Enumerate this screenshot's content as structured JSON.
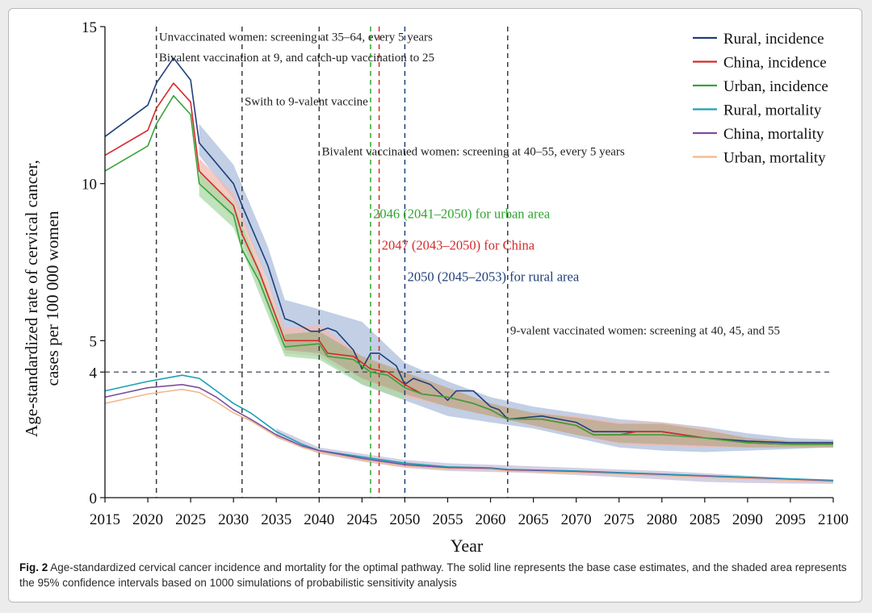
{
  "chart_data": {
    "type": "line",
    "title": "",
    "xlabel": "Year",
    "ylabel": "Age-standardized rate of cervical cancer,",
    "ylabel2": "cases per 100 000 women",
    "xlim": [
      2015,
      2100
    ],
    "ylim": [
      0,
      15
    ],
    "xticks": [
      "2015",
      "2020",
      "2025",
      "2030",
      "2035",
      "2040",
      "2045",
      "2050",
      "2055",
      "2060",
      "2065",
      "2070",
      "2075",
      "2080",
      "2085",
      "2090",
      "2095",
      "2100"
    ],
    "yticks": [
      "0",
      "4",
      "5",
      "10",
      "15"
    ],
    "threshold": 4,
    "legend_position": "top-right",
    "series": [
      {
        "name": "Rural, incidence",
        "color": "#1f3f7a",
        "x": [
          2015,
          2020,
          2021,
          2023,
          2025,
          2026,
          2030,
          2031,
          2034,
          2036,
          2037,
          2039,
          2040,
          2041,
          2042,
          2044,
          2045,
          2046,
          2047,
          2049,
          2050,
          2051,
          2053,
          2055,
          2056,
          2058,
          2060,
          2061,
          2062,
          2066,
          2070,
          2072,
          2075,
          2077,
          2080,
          2085,
          2090,
          2095,
          2100
        ],
        "y": [
          11.5,
          12.5,
          13.2,
          14.0,
          13.3,
          11.3,
          10.0,
          9.3,
          7.4,
          5.7,
          5.6,
          5.3,
          5.3,
          5.4,
          5.3,
          4.7,
          4.1,
          4.6,
          4.6,
          4.2,
          3.6,
          3.8,
          3.6,
          3.1,
          3.4,
          3.4,
          2.9,
          2.8,
          2.5,
          2.6,
          2.4,
          2.1,
          2.1,
          2.1,
          2.1,
          1.9,
          1.8,
          1.75,
          1.75
        ]
      },
      {
        "name": "China, incidence",
        "color": "#d42b2b",
        "x": [
          2015,
          2020,
          2021,
          2023,
          2025,
          2026,
          2030,
          2031,
          2033,
          2036,
          2040,
          2041,
          2044,
          2046,
          2048,
          2050,
          2052,
          2055,
          2058,
          2060,
          2062,
          2066,
          2070,
          2072,
          2075,
          2077,
          2080,
          2085,
          2090,
          2095,
          2100
        ],
        "y": [
          10.9,
          11.7,
          12.4,
          13.2,
          12.6,
          10.4,
          9.3,
          8.4,
          7.2,
          5.0,
          5.0,
          4.6,
          4.5,
          4.1,
          4.0,
          3.6,
          3.3,
          3.2,
          3.0,
          2.8,
          2.5,
          2.5,
          2.3,
          2.0,
          2.0,
          2.1,
          2.1,
          1.9,
          1.75,
          1.7,
          1.7
        ]
      },
      {
        "name": "Urban, incidence",
        "color": "#3aa33a",
        "x": [
          2015,
          2020,
          2021,
          2023,
          2025,
          2026,
          2030,
          2031,
          2033,
          2036,
          2040,
          2041,
          2044,
          2046,
          2048,
          2050,
          2052,
          2055,
          2058,
          2060,
          2062,
          2066,
          2070,
          2072,
          2075,
          2077,
          2080,
          2085,
          2090,
          2095,
          2100
        ],
        "y": [
          10.4,
          11.2,
          11.9,
          12.8,
          12.2,
          10.0,
          9.0,
          7.9,
          6.9,
          4.8,
          4.9,
          4.5,
          4.4,
          4.0,
          3.9,
          3.5,
          3.3,
          3.2,
          3.0,
          2.8,
          2.5,
          2.5,
          2.3,
          2.0,
          2.0,
          2.0,
          2.0,
          1.9,
          1.75,
          1.7,
          1.7
        ]
      },
      {
        "name": "Rural, mortality",
        "color": "#1aa0b8",
        "x": [
          2015,
          2020,
          2024,
          2026,
          2028,
          2030,
          2032,
          2035,
          2038,
          2040,
          2045,
          2050,
          2055,
          2060,
          2062,
          2070,
          2080,
          2090,
          2100
        ],
        "y": [
          3.4,
          3.7,
          3.9,
          3.8,
          3.4,
          3.0,
          2.7,
          2.1,
          1.7,
          1.5,
          1.3,
          1.1,
          0.98,
          0.95,
          0.9,
          0.85,
          0.75,
          0.65,
          0.55
        ]
      },
      {
        "name": "China, mortality",
        "color": "#7a4f9e",
        "x": [
          2015,
          2020,
          2024,
          2026,
          2028,
          2030,
          2032,
          2035,
          2038,
          2040,
          2045,
          2050,
          2055,
          2060,
          2062,
          2070,
          2080,
          2090,
          2100
        ],
        "y": [
          3.2,
          3.5,
          3.6,
          3.5,
          3.2,
          2.8,
          2.5,
          2.0,
          1.65,
          1.5,
          1.25,
          1.05,
          0.95,
          0.92,
          0.88,
          0.82,
          0.72,
          0.62,
          0.52
        ]
      },
      {
        "name": "Urban, mortality",
        "color": "#f0b88e",
        "x": [
          2015,
          2020,
          2024,
          2026,
          2028,
          2030,
          2032,
          2035,
          2038,
          2040,
          2045,
          2050,
          2055,
          2060,
          2062,
          2070,
          2080,
          2090,
          2100
        ],
        "y": [
          3.0,
          3.3,
          3.45,
          3.35,
          3.05,
          2.7,
          2.45,
          1.95,
          1.6,
          1.45,
          1.2,
          1.0,
          0.92,
          0.9,
          0.85,
          0.8,
          0.7,
          0.6,
          0.5
        ]
      }
    ],
    "bands": [
      {
        "series": "Rural, incidence",
        "color": "#aebfdc",
        "x": [
          2026,
          2030,
          2034,
          2036,
          2040,
          2045,
          2050,
          2055,
          2060,
          2065,
          2070,
          2075,
          2080,
          2085,
          2090,
          2095,
          2100
        ],
        "lo": [
          10.9,
          9.5,
          6.9,
          5.1,
          4.5,
          3.6,
          3.1,
          2.6,
          2.4,
          2.2,
          1.9,
          1.6,
          1.5,
          1.45,
          1.5,
          1.55,
          1.6
        ],
        "hi": [
          11.9,
          10.6,
          8.0,
          6.3,
          6.0,
          5.6,
          4.3,
          3.7,
          3.2,
          2.9,
          2.7,
          2.5,
          2.4,
          2.25,
          2.05,
          1.9,
          1.85
        ]
      },
      {
        "series": "China, incidence",
        "color": "#f3b9b0",
        "x": [
          2026,
          2030,
          2033,
          2036,
          2040,
          2045,
          2050,
          2055,
          2060,
          2065,
          2070,
          2075,
          2080,
          2085,
          2090,
          2095,
          2100
        ],
        "lo": [
          10.0,
          8.9,
          6.8,
          4.6,
          4.5,
          3.7,
          3.2,
          2.9,
          2.6,
          2.3,
          2.0,
          1.7,
          1.65,
          1.6,
          1.6,
          1.6,
          1.6
        ],
        "hi": [
          10.8,
          9.7,
          7.6,
          5.4,
          5.5,
          4.5,
          4.0,
          3.5,
          3.0,
          2.7,
          2.6,
          2.4,
          2.4,
          2.2,
          1.9,
          1.8,
          1.8
        ]
      },
      {
        "series": "Urban, incidence",
        "color": "#a9d9a7",
        "x": [
          2026,
          2030,
          2033,
          2036,
          2040,
          2045,
          2050
        ],
        "lo": [
          9.6,
          8.6,
          6.5,
          4.5,
          4.4,
          3.6,
          3.1
        ],
        "hi": [
          10.4,
          9.4,
          7.3,
          5.2,
          5.3,
          4.4,
          3.9
        ]
      },
      {
        "series": "Olive overlap",
        "color": "#b7a98e",
        "x": [
          2036,
          2040,
          2045,
          2050,
          2055,
          2060,
          2065,
          2070,
          2075,
          2080,
          2085,
          2090,
          2095,
          2100
        ],
        "lo": [
          4.7,
          4.6,
          3.8,
          3.3,
          2.9,
          2.6,
          2.3,
          2.0,
          1.75,
          1.7,
          1.65,
          1.6,
          1.6,
          1.6
        ],
        "hi": [
          5.2,
          5.3,
          4.5,
          4.0,
          3.5,
          3.0,
          2.7,
          2.55,
          2.35,
          2.35,
          2.15,
          1.9,
          1.8,
          1.8
        ]
      },
      {
        "series": "Mortality",
        "color": "#c8bfd9",
        "x": [
          2035,
          2040,
          2045,
          2050,
          2055,
          2060,
          2065,
          2070,
          2075,
          2080,
          2085,
          2090,
          2095,
          2100
        ],
        "lo": [
          1.9,
          1.4,
          1.15,
          0.95,
          0.85,
          0.82,
          0.78,
          0.72,
          0.65,
          0.58,
          0.5,
          0.47,
          0.45,
          0.44
        ],
        "hi": [
          2.2,
          1.6,
          1.4,
          1.2,
          1.1,
          1.05,
          1.0,
          0.95,
          0.9,
          0.85,
          0.78,
          0.7,
          0.62,
          0.58
        ]
      }
    ],
    "vlines": [
      {
        "x": 2021,
        "color": "#3c3c3c"
      },
      {
        "x": 2031,
        "color": "#3c3c3c"
      },
      {
        "x": 2040,
        "color": "#3c3c3c"
      },
      {
        "x": 2046,
        "color": "#2ea62e"
      },
      {
        "x": 2047,
        "color": "#d42b2b"
      },
      {
        "x": 2050,
        "color": "#1f3f7a"
      },
      {
        "x": 2062,
        "color": "#3c3c3c"
      }
    ],
    "annotations": [
      {
        "text": "Unvaccinated women: screening at 35–64, every 5 years",
        "x": 2021.3,
        "y": 14.55,
        "color": "#222222"
      },
      {
        "text": "Bivalent vaccination at 9, and catch-up vaccination to 25",
        "x": 2021.3,
        "y": 13.9,
        "color": "#222222"
      },
      {
        "text": "Swith to 9-valent vaccine",
        "x": 2031.3,
        "y": 12.5,
        "color": "#222222"
      },
      {
        "text": "Bivalent vaccinated women: screening at 40–55, every 5 years",
        "x": 2040.3,
        "y": 10.9,
        "color": "#222222"
      },
      {
        "text": "2046 (2041–2050) for urban area",
        "x": 2046.3,
        "y": 8.9,
        "color": "#2ea62e"
      },
      {
        "text": "2047 (2043–2050) for China",
        "x": 2047.3,
        "y": 7.9,
        "color": "#d42b2b"
      },
      {
        "text": "2050 (2045–2053) for rural area",
        "x": 2050.3,
        "y": 6.9,
        "color": "#1f3f7a"
      },
      {
        "text": "9-valent vaccinated women: screening at 40, 45, and 55",
        "x": 2062.3,
        "y": 5.2,
        "color": "#222222"
      }
    ]
  },
  "caption": {
    "label": "Fig. 2",
    "text": "Age-standardized cervical cancer incidence and mortality for the optimal pathway. The solid line represents the base case estimates, and the shaded area represents the 95% confidence intervals based on 1000 simulations of probabilistic sensitivity analysis"
  }
}
